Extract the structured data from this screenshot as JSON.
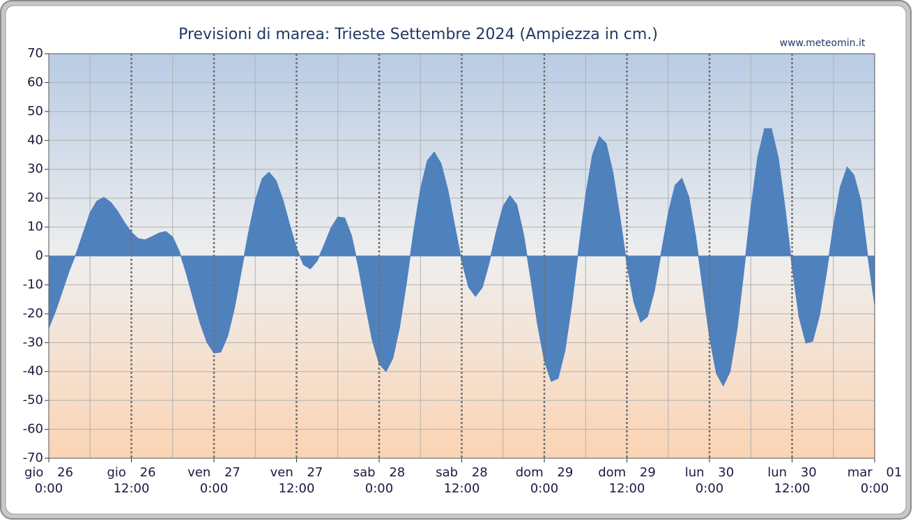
{
  "chart_data": {
    "type": "area",
    "title": "Previsioni di marea: Trieste Settembre 2024 (Ampiezza in cm.)",
    "source": "www.meteomin.it",
    "color": "#4f81bd",
    "grid": true,
    "xlim": [
      0,
      120
    ],
    "ylim": [
      -70,
      70
    ],
    "yticks": [
      -70,
      -60,
      -50,
      -40,
      -30,
      -20,
      -10,
      0,
      10,
      20,
      30,
      40,
      50,
      60,
      70
    ],
    "xticks": [
      {
        "value": 0,
        "label": "0:00"
      },
      {
        "value": 12,
        "label": "12:00"
      },
      {
        "value": 24,
        "label": "0:00"
      },
      {
        "value": 36,
        "label": "12:00"
      },
      {
        "value": 48,
        "label": "0:00"
      },
      {
        "value": 60,
        "label": "12:00"
      },
      {
        "value": 72,
        "label": "0:00"
      },
      {
        "value": 84,
        "label": "12:00"
      },
      {
        "value": 96,
        "label": "0:00"
      },
      {
        "value": 108,
        "label": "12:00"
      },
      {
        "value": 120,
        "label": "0:00"
      }
    ],
    "xtick_days": [
      "gio 26",
      "gio 26",
      "ven 27",
      "ven 27",
      "sab 28",
      "sab 28",
      "dom 29",
      "dom 29",
      "lun 30",
      "lun 30",
      "mar 01"
    ],
    "xminor": [
      6,
      18,
      30,
      42,
      54,
      66,
      78,
      90,
      102,
      114
    ],
    "x": [
      0,
      1,
      2,
      3,
      4,
      5,
      6,
      7,
      8,
      9,
      10,
      11,
      12,
      13,
      14,
      15,
      16,
      17,
      18,
      19,
      20,
      21,
      22,
      23,
      24,
      25,
      26,
      27,
      28,
      29,
      30,
      31,
      32,
      33,
      34,
      35,
      36,
      37,
      38,
      39,
      40,
      41,
      42,
      43,
      44,
      45,
      46,
      47,
      48,
      49,
      50,
      51,
      52,
      53,
      54,
      55,
      56,
      57,
      58,
      59,
      60,
      61,
      62,
      63,
      64,
      65,
      66,
      67,
      68,
      69,
      70,
      71,
      72,
      73,
      74,
      75,
      76,
      77,
      78,
      79,
      80,
      81,
      82,
      83,
      84,
      85,
      86,
      87,
      88,
      89,
      90,
      91,
      92,
      93,
      94,
      95,
      96,
      97,
      98,
      99,
      100,
      101,
      102,
      103,
      104,
      105,
      106,
      107,
      108,
      109,
      110,
      111,
      112,
      113,
      114,
      115,
      116,
      117,
      118,
      119,
      120
    ],
    "values": [
      -25,
      -19,
      -12,
      -5,
      1,
      8,
      15,
      19,
      20.3,
      18.6,
      15.5,
      11.6,
      8.2,
      6,
      5.6,
      6.7,
      7.9,
      8.5,
      6.6,
      1.4,
      -6.2,
      -14.9,
      -23.4,
      -30,
      -33.6,
      -33.3,
      -27.7,
      -17.9,
      -5,
      7.9,
      19.2,
      26.8,
      29,
      26.2,
      19.6,
      10.9,
      2.7,
      -3,
      -4.5,
      -1.7,
      3.8,
      9.7,
      13.5,
      13.2,
      7,
      -4.1,
      -17,
      -29.2,
      -37.3,
      -40,
      -35.4,
      -24.4,
      -8.8,
      8.3,
      23.1,
      33,
      36,
      32,
      22.8,
      10.3,
      -1.8,
      -10.8,
      -14,
      -10.9,
      -2.3,
      8.2,
      17.2,
      20.9,
      17.8,
      7.4,
      -7.6,
      -23.5,
      -36.2,
      -43.4,
      -42.4,
      -32.9,
      -16.6,
      2.6,
      21,
      35.1,
      41.4,
      38.9,
      28.6,
      13.4,
      -3,
      -15.9,
      -22.9,
      -21,
      -12,
      1.3,
      14.8,
      24.5,
      26.9,
      20.5,
      6.8,
      -10.8,
      -28.1,
      -40.7,
      -45,
      -40,
      -25.5,
      -5.2,
      16.1,
      34.2,
      44.1,
      44.1,
      34,
      16.4,
      -3.8,
      -21,
      -30.2,
      -29.5,
      -20.5,
      -5.9,
      10.5,
      23.9,
      30.8,
      28,
      19,
      0,
      -17
    ]
  }
}
